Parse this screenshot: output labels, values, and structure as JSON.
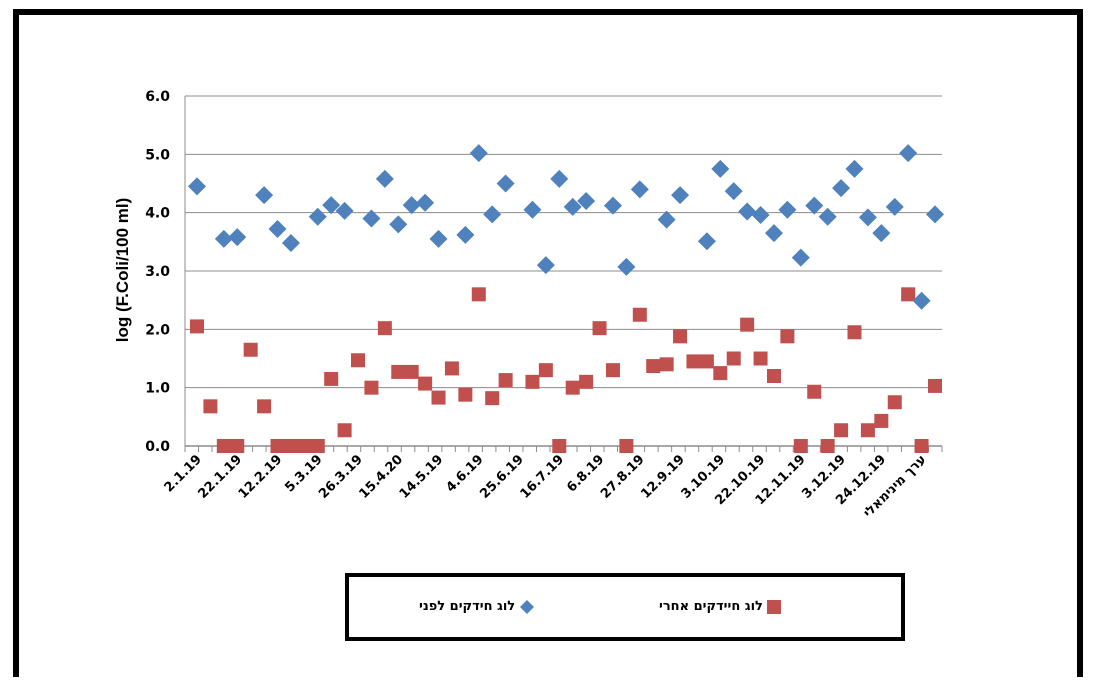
{
  "chart_data": {
    "type": "scatter",
    "ylabel": "log (F.Coli/100  ml)",
    "ylim": [
      0,
      6
    ],
    "yticks": [
      "0.0",
      "1.0",
      "2.0",
      "3.0",
      "4.0",
      "5.0",
      "6.0"
    ],
    "grid": true,
    "legend_position": "bottom",
    "x_tick_labels": [
      "2.1.19",
      "22.1.19",
      "12.2.19",
      "5.3.19",
      "26.3.19",
      "15.4.20",
      "14.5.19",
      "4.6.19",
      "25.6.19",
      "16.7.19",
      "6.8.19",
      "27.8.19",
      "12.9.19",
      "3.10.19",
      "22.10.19",
      "12.11.19",
      "3.12.19",
      "24.12.19",
      "ערך מינימאלי"
    ],
    "series": [
      {
        "name": "לוג חידקים לפני",
        "marker": "diamond",
        "color": "#4f81bd",
        "values": [
          4.45,
          null,
          3.55,
          3.58,
          null,
          4.3,
          3.72,
          3.48,
          null,
          3.93,
          4.13,
          4.03,
          null,
          3.9,
          4.58,
          3.8,
          4.13,
          4.17,
          3.55,
          null,
          3.62,
          5.02,
          3.97,
          4.5,
          null,
          4.05,
          3.1,
          4.58,
          4.1,
          4.2,
          null,
          4.12,
          3.07,
          4.4,
          null,
          3.88,
          4.3,
          null,
          3.51,
          4.75,
          4.37,
          4.02,
          3.96,
          3.65,
          4.05,
          3.23,
          4.12,
          3.93,
          4.42,
          4.75,
          3.92,
          3.65,
          4.1,
          5.02,
          2.49,
          3.97
        ]
      },
      {
        "name": "לוג חיידקים אחרי",
        "marker": "square",
        "color": "#c0504d",
        "values": [
          2.05,
          0.68,
          0.0,
          0.0,
          1.65,
          0.68,
          0.0,
          0.0,
          0.0,
          0.0,
          1.15,
          0.27,
          1.47,
          1.0,
          2.02,
          1.27,
          1.27,
          1.07,
          0.83,
          1.33,
          0.88,
          2.6,
          0.82,
          1.13,
          null,
          1.1,
          1.3,
          0.0,
          1.0,
          1.1,
          2.02,
          1.3,
          0.0,
          2.25,
          1.37,
          1.4,
          1.88,
          1.45,
          1.45,
          1.25,
          1.5,
          2.08,
          1.5,
          1.2,
          1.88,
          0.0,
          0.93,
          0.0,
          0.27,
          1.95,
          0.27,
          0.43,
          0.75,
          2.6,
          0.0,
          1.03
        ]
      }
    ]
  }
}
